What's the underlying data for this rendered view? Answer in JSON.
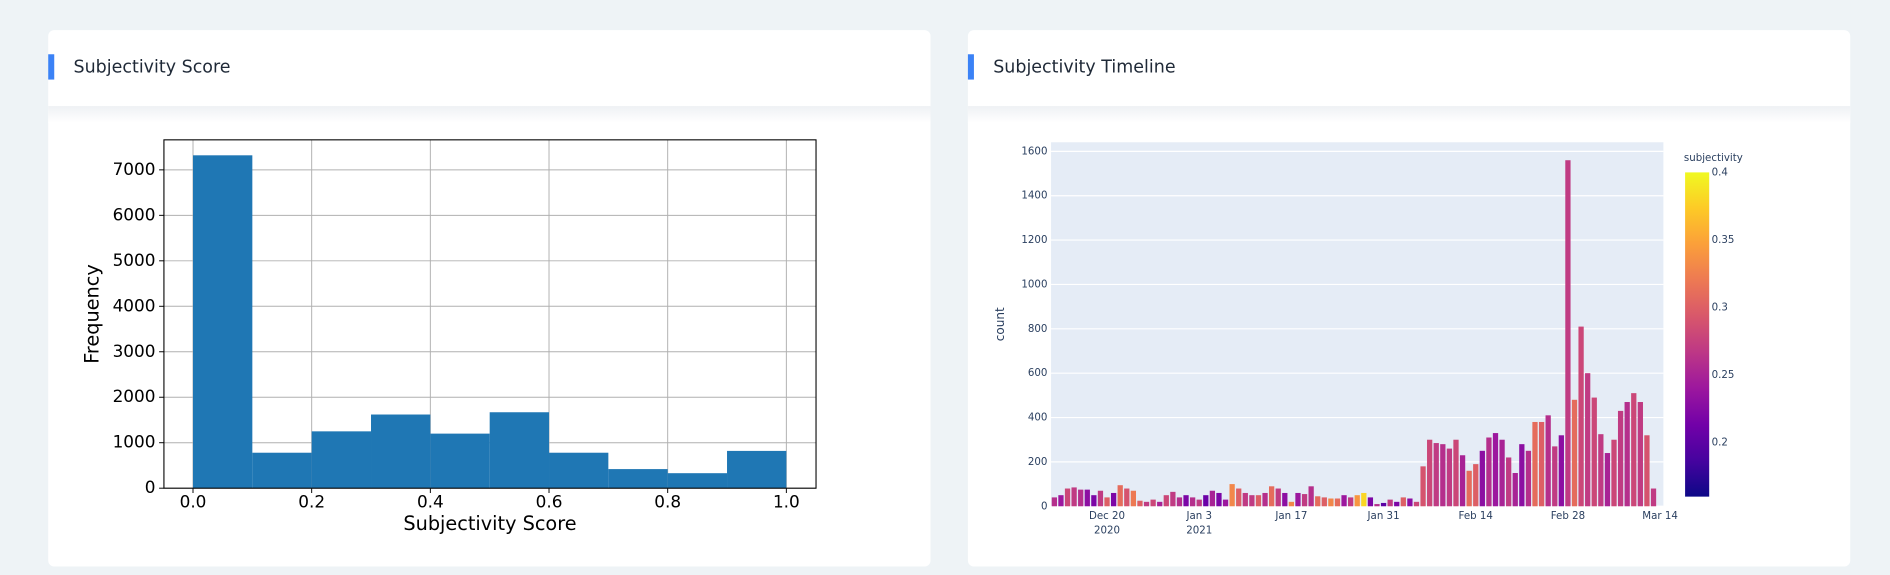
{
  "chart_data": [
    {
      "type": "histogram",
      "title": "Subjectivity Score",
      "xlabel": "Subjectivity Score",
      "ylabel": "Frequency",
      "bins": [
        0,
        0.1,
        0.2,
        0.3,
        0.4,
        0.5,
        0.6,
        0.7,
        0.8,
        0.9,
        1.0
      ],
      "values": [
        7320,
        780,
        1250,
        1620,
        1200,
        1670,
        780,
        420,
        330,
        820
      ],
      "color": "#1f77b4",
      "grid": true,
      "xlim": [
        -0.049,
        1.05
      ],
      "ylim": [
        0,
        7660
      ],
      "xticks": [
        {
          "value": 0,
          "label": "0.0"
        },
        0.2,
        0.4,
        0.6,
        0.8,
        {
          "value": 1,
          "label": "1.0"
        }
      ],
      "yticks": [
        0,
        1000,
        2000,
        3000,
        4000,
        5000,
        6000,
        7000
      ]
    },
    {
      "type": "bar",
      "title": "Subjectivity Timeline",
      "ylabel": "count",
      "colorbar_title": "subjectivity",
      "x": [
        "2020-12-12",
        "2020-12-13",
        "2020-12-14",
        "2020-12-15",
        "2020-12-16",
        "2020-12-17",
        "2020-12-18",
        "2020-12-19",
        "2020-12-20",
        "2020-12-21",
        "2020-12-22",
        "2020-12-23",
        "2020-12-24",
        "2020-12-25",
        "2020-12-26",
        "2020-12-27",
        "2020-12-28",
        "2020-12-29",
        "2020-12-30",
        "2020-12-31",
        "2021-01-01",
        "2021-01-02",
        "2021-01-03",
        "2021-01-04",
        "2021-01-05",
        "2021-01-06",
        "2021-01-07",
        "2021-01-08",
        "2021-01-09",
        "2021-01-10",
        "2021-01-11",
        "2021-01-12",
        "2021-01-13",
        "2021-01-14",
        "2021-01-15",
        "2021-01-16",
        "2021-01-17",
        "2021-01-18",
        "2021-01-19",
        "2021-01-20",
        "2021-01-21",
        "2021-01-22",
        "2021-01-23",
        "2021-01-24",
        "2021-01-25",
        "2021-01-26",
        "2021-01-27",
        "2021-01-28",
        "2021-01-29",
        "2021-01-30",
        "2021-01-31",
        "2021-02-01",
        "2021-02-02",
        "2021-02-03",
        "2021-02-04",
        "2021-02-05",
        "2021-02-06",
        "2021-02-07",
        "2021-02-08",
        "2021-02-09",
        "2021-02-10",
        "2021-02-11",
        "2021-02-12",
        "2021-02-13",
        "2021-02-14",
        "2021-02-15",
        "2021-02-16",
        "2021-02-17",
        "2021-02-18",
        "2021-02-19",
        "2021-02-20",
        "2021-02-21",
        "2021-02-22",
        "2021-02-23",
        "2021-02-24",
        "2021-02-25",
        "2021-02-26",
        "2021-02-27",
        "2021-02-28",
        "2021-03-01",
        "2021-03-02",
        "2021-03-03",
        "2021-03-04",
        "2021-03-05",
        "2021-03-06",
        "2021-03-07",
        "2021-03-08",
        "2021-03-09",
        "2021-03-10",
        "2021-03-11",
        "2021-03-12",
        "2021-03-13"
      ],
      "values": [
        40,
        50,
        80,
        85,
        75,
        75,
        50,
        70,
        40,
        60,
        95,
        80,
        70,
        25,
        20,
        30,
        20,
        50,
        65,
        40,
        50,
        40,
        30,
        50,
        70,
        60,
        30,
        100,
        80,
        60,
        50,
        50,
        60,
        90,
        80,
        60,
        20,
        60,
        55,
        90,
        45,
        40,
        35,
        35,
        50,
        40,
        50,
        60,
        40,
        10,
        15,
        30,
        20,
        40,
        35,
        20,
        180,
        300,
        285,
        280,
        260,
        300,
        230,
        160,
        190,
        250,
        310,
        330,
        300,
        220,
        150,
        280,
        250,
        380,
        380,
        410,
        270,
        320,
        1560,
        480,
        810,
        600,
        490,
        325,
        240,
        300,
        430,
        470,
        510,
        470,
        320,
        80
      ],
      "color_values": [
        0.26,
        0.24,
        0.28,
        0.27,
        0.26,
        0.23,
        0.22,
        0.27,
        0.3,
        0.22,
        0.31,
        0.29,
        0.32,
        0.3,
        0.27,
        0.28,
        0.25,
        0.28,
        0.27,
        0.26,
        0.22,
        0.26,
        0.27,
        0.21,
        0.25,
        0.22,
        0.24,
        0.33,
        0.3,
        0.27,
        0.27,
        0.3,
        0.26,
        0.31,
        0.27,
        0.23,
        0.33,
        0.24,
        0.27,
        0.26,
        0.31,
        0.3,
        0.33,
        0.31,
        0.24,
        0.27,
        0.34,
        0.38,
        0.22,
        0.26,
        0.2,
        0.27,
        0.22,
        0.3,
        0.23,
        0.28,
        0.29,
        0.28,
        0.27,
        0.26,
        0.27,
        0.28,
        0.25,
        0.31,
        0.3,
        0.23,
        0.26,
        0.24,
        0.25,
        0.27,
        0.25,
        0.23,
        0.26,
        0.31,
        0.3,
        0.26,
        0.27,
        0.23,
        0.27,
        0.31,
        0.28,
        0.27,
        0.28,
        0.27,
        0.25,
        0.28,
        0.27,
        0.26,
        0.28,
        0.27,
        0.29,
        0.27
      ],
      "colorscale": [
        "#0d0887",
        "#46039f",
        "#7201a8",
        "#9c179e",
        "#bd3786",
        "#d8576b",
        "#ed7953",
        "#fb9f3a",
        "#fdca26",
        "#f0f921"
      ],
      "clim": [
        0.16,
        0.4
      ],
      "cticks": [
        0.2,
        0.25,
        0.3,
        0.35,
        0.4
      ],
      "grid": true,
      "xlim": [
        "2020-12-11T12:00:00",
        "2021-03-14T12:00:00"
      ],
      "ylim": [
        0,
        1641
      ],
      "xticks": [
        {
          "value": "2020-12-20",
          "label": "Dec 20",
          "sublabel": "2020"
        },
        {
          "value": "2021-01-03",
          "label": "Jan 3",
          "sublabel": "2021"
        },
        {
          "value": "2021-01-17",
          "label": "Jan 17"
        },
        {
          "value": "2021-01-31",
          "label": "Jan 31"
        },
        {
          "value": "2021-02-14",
          "label": "Feb 14"
        },
        {
          "value": "2021-02-28",
          "label": "Feb 28"
        },
        {
          "value": "2021-03-14",
          "label": "Mar 14"
        }
      ],
      "yticks": [
        0,
        200,
        400,
        600,
        800,
        1000,
        1200,
        1400,
        1600
      ]
    }
  ]
}
